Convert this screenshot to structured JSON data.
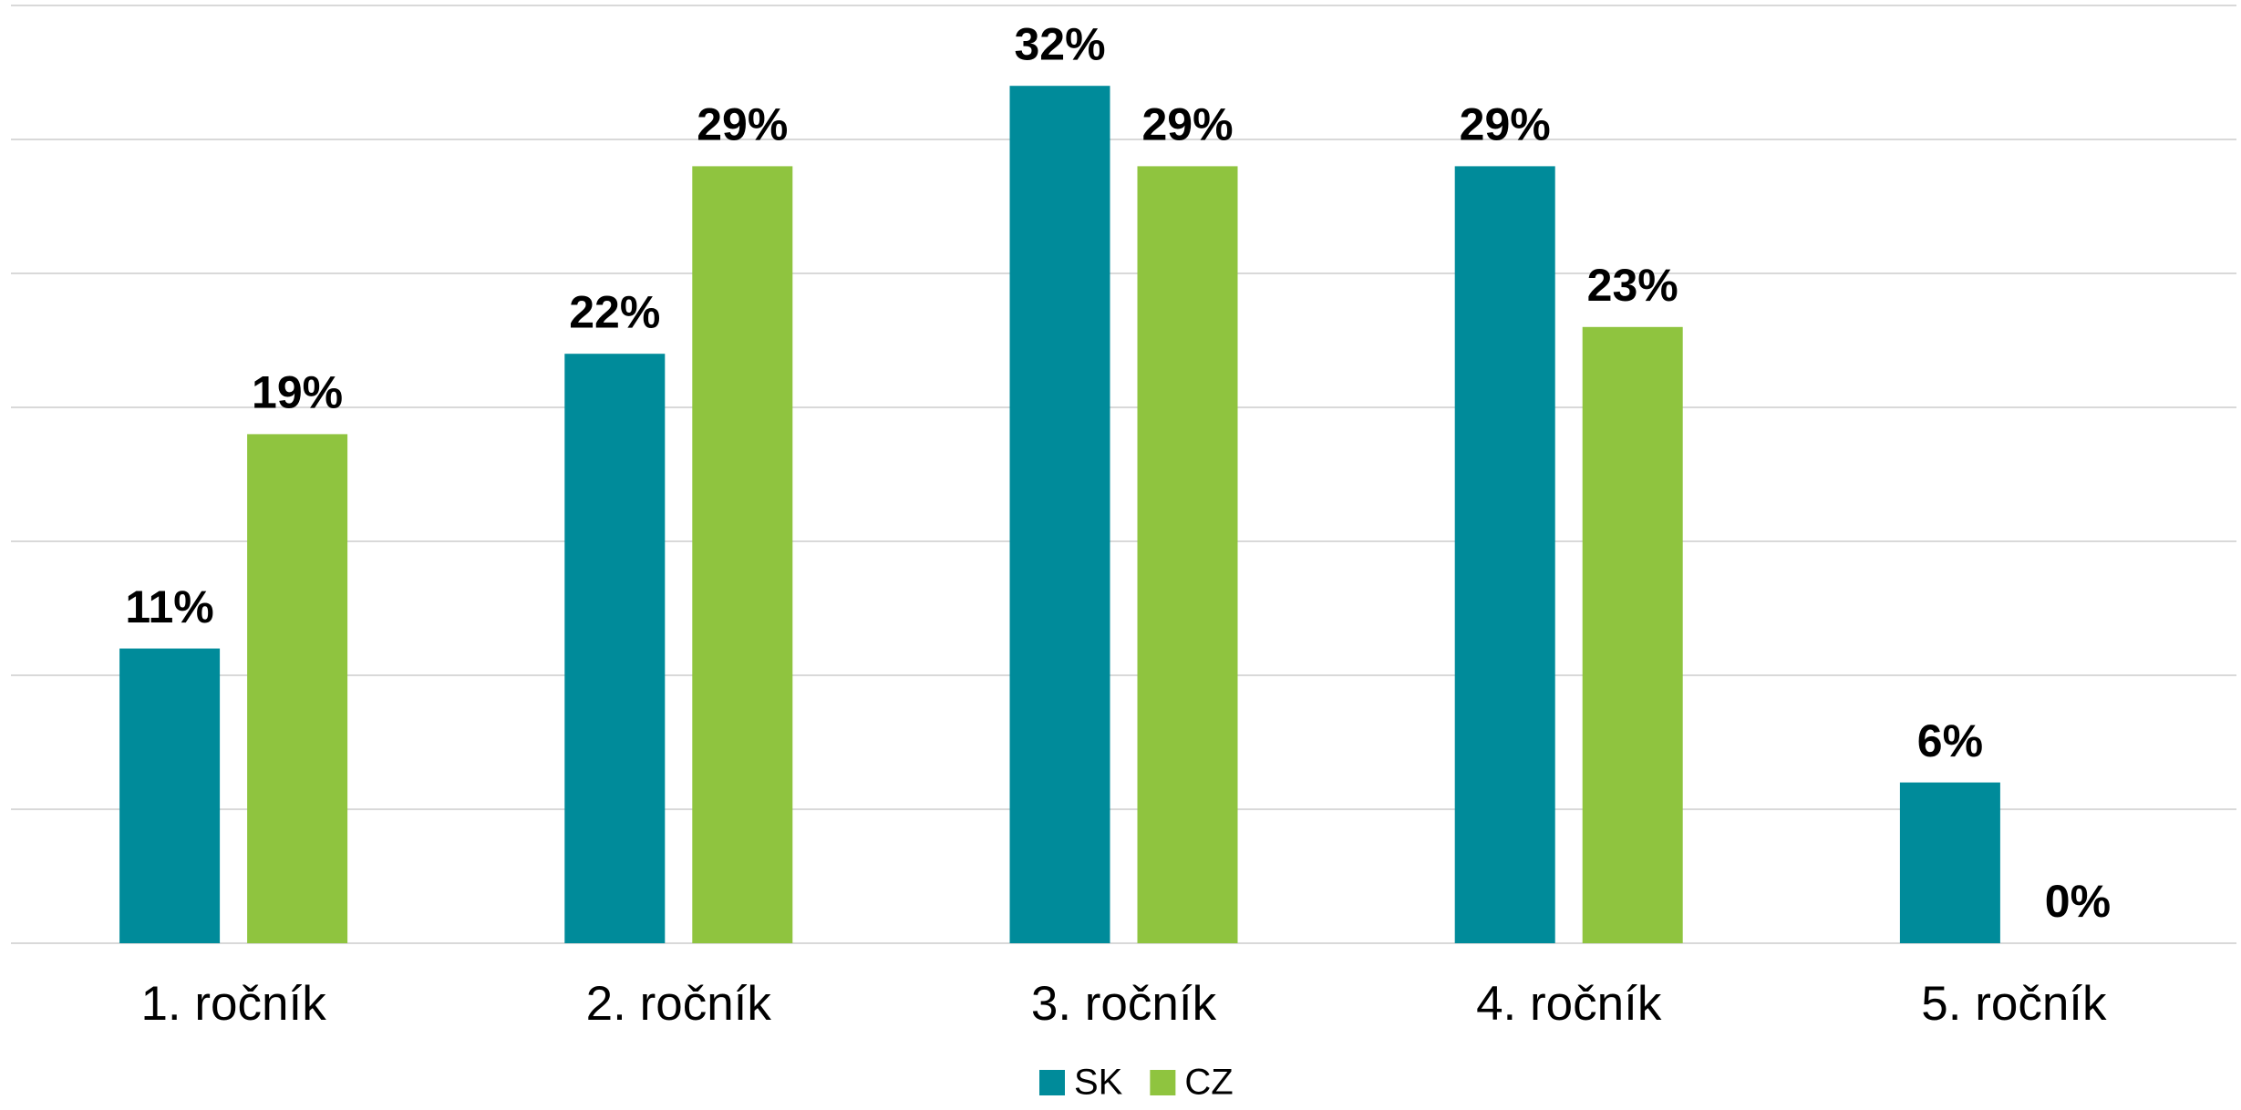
{
  "chart_data": {
    "type": "bar",
    "categories": [
      "1. ročník",
      "2. ročník",
      "3. ročník",
      "4. ročník",
      "5. ročník"
    ],
    "series": [
      {
        "name": "SK",
        "color": "#008b9a",
        "values": [
          11,
          22,
          32,
          29,
          6
        ],
        "value_labels": [
          "11%",
          "22%",
          "32%",
          "29%",
          "6%"
        ]
      },
      {
        "name": "CZ",
        "color": "#8fc43f",
        "values": [
          19,
          29,
          29,
          23,
          0
        ],
        "value_labels": [
          "19%",
          "29%",
          "29%",
          "23%",
          "0%"
        ]
      }
    ],
    "ylim": [
      0,
      35
    ],
    "yticks": [
      0,
      5,
      10,
      15,
      20,
      25,
      30,
      35
    ],
    "grid": true,
    "legend": "bottom"
  }
}
